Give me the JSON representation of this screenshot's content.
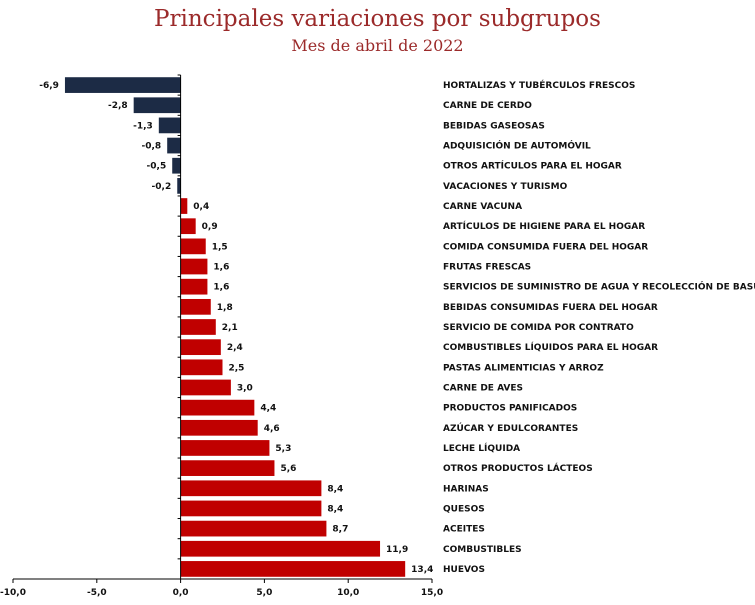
{
  "header": {
    "title": "Principales variaciones por subgrupos",
    "subtitle": "Mes de abril de 2022"
  },
  "colors": {
    "negative": "#1c2b45",
    "positive": "#c00000",
    "axis": "#000000"
  },
  "chart_data": {
    "type": "bar",
    "orientation": "horizontal",
    "title": "Principales variaciones por subgrupos",
    "subtitle": "Mes de abril de 2022",
    "xlim": [
      -10,
      15
    ],
    "xticks": [
      -10,
      -5,
      0,
      5,
      10,
      15
    ],
    "xtick_labels": [
      "-10,0",
      "-5,0",
      "0,0",
      "5,0",
      "10,0",
      "15,0"
    ],
    "categories": [
      "HORTALIZAS Y TUBÉRCULOS FRESCOS",
      "CARNE DE CERDO",
      "BEBIDAS GASEOSAS",
      "ADQUISICIÓN DE AUTOMÓVIL",
      "OTROS ARTÍCULOS PARA EL HOGAR",
      "VACACIONES Y TURISMO",
      "CARNE VACUNA",
      "ARTÍCULOS DE HIGIENE PARA EL HOGAR",
      "COMIDA CONSUMIDA FUERA DEL HOGAR",
      "FRUTAS FRESCAS",
      "SERVICIOS DE SUMINISTRO DE AGUA Y RECOLECCIÓN DE BASURA",
      "BEBIDAS CONSUMIDAS FUERA DEL HOGAR",
      "SERVICIO DE COMIDA POR CONTRATO",
      "COMBUSTIBLES LÍQUIDOS PARA EL HOGAR",
      "PASTAS ALIMENTICIAS Y ARROZ",
      "CARNE DE AVES",
      "PRODUCTOS PANIFICADOS",
      "AZÚCAR Y EDULCORANTES",
      "LECHE LÍQUIDA",
      "OTROS PRODUCTOS LÁCTEOS",
      "HARINAS",
      "QUESOS",
      "ACEITES",
      "COMBUSTIBLES",
      "HUEVOS"
    ],
    "values": [
      -6.9,
      -2.8,
      -1.3,
      -0.8,
      -0.5,
      -0.2,
      0.4,
      0.9,
      1.5,
      1.6,
      1.6,
      1.8,
      2.1,
      2.4,
      2.5,
      3.0,
      4.4,
      4.6,
      5.3,
      5.6,
      8.4,
      8.4,
      8.7,
      11.9,
      13.4
    ],
    "value_labels": [
      "-6,9",
      "-2,8",
      "-1,3",
      "-0,8",
      "-0,5",
      "-0,2",
      "0,4",
      "0,9",
      "1,5",
      "1,6",
      "1,6",
      "1,8",
      "2,1",
      "2,4",
      "2,5",
      "3,0",
      "4,4",
      "4,6",
      "5,3",
      "5,6",
      "8,4",
      "8,4",
      "8,7",
      "11,9",
      "13,4"
    ]
  }
}
